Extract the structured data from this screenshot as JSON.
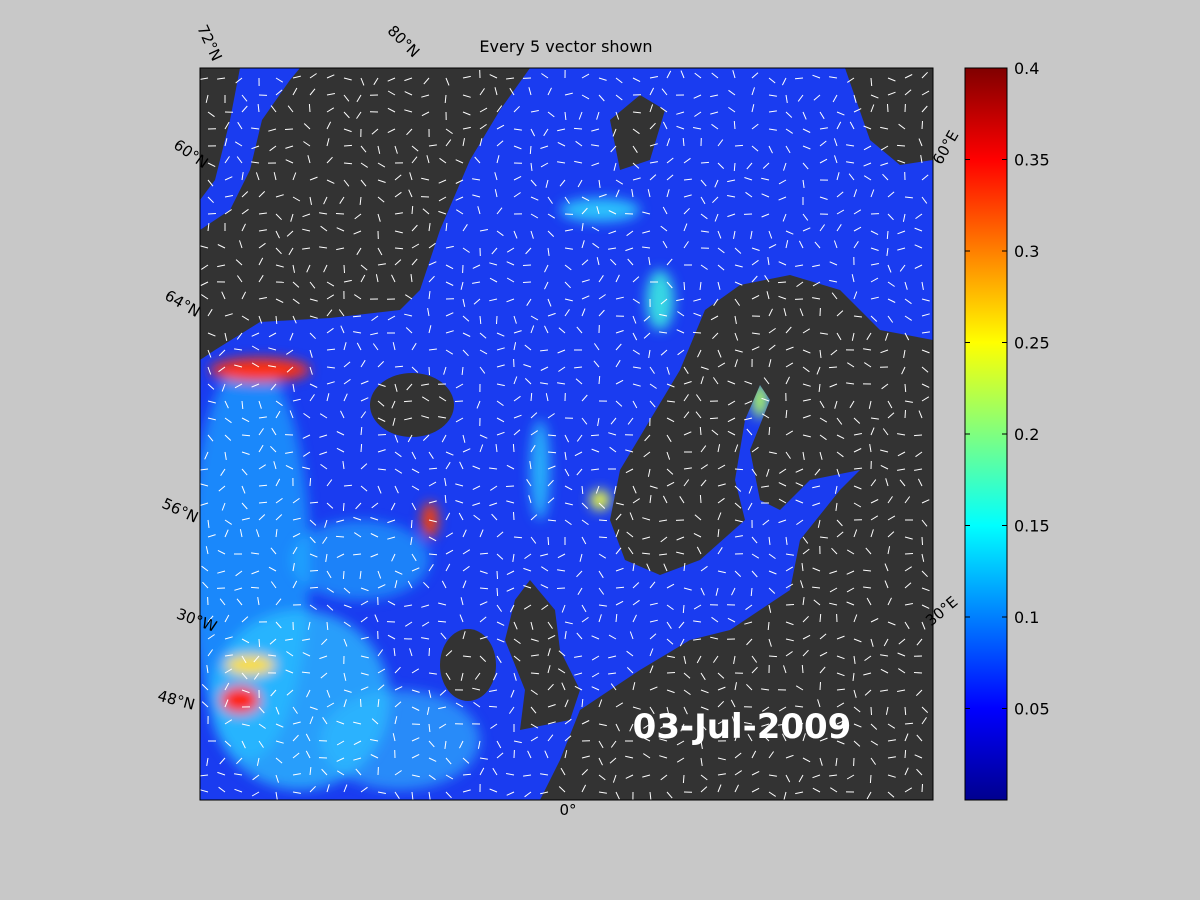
{
  "map": {
    "title": "Every 5 vector shown",
    "date_label": "03-Jul-2009",
    "graticule_labels": [
      "72°N",
      "80°N",
      "60°N",
      "64°N",
      "56°N",
      "30°W",
      "48°N",
      "0°",
      "30°E",
      "60°E"
    ]
  },
  "colorbar": {
    "clim": [
      0,
      0.4
    ],
    "ticks": [
      0.05,
      0.1,
      0.15,
      0.2,
      0.25,
      0.3,
      0.35,
      0.4
    ]
  }
}
